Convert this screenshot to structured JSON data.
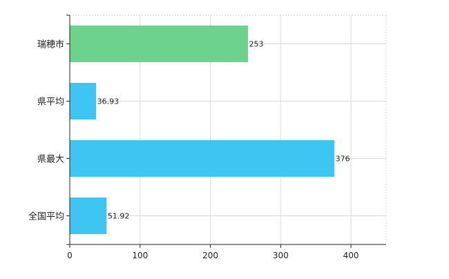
{
  "chart_data": {
    "type": "bar",
    "orientation": "horizontal",
    "categories": [
      "瑞穂市",
      "県平均",
      "県最大",
      "全国平均"
    ],
    "values": [
      253,
      36.93,
      376,
      51.92
    ],
    "value_labels": [
      "253",
      "36.93",
      "376",
      "51.92"
    ],
    "bar_colors": [
      "#6dd28b",
      "#3ec5f2",
      "#3ec5f2",
      "#3ec5f2"
    ],
    "x_ticks": [
      "0",
      "100",
      "200",
      "300",
      "400"
    ],
    "xlim": [
      0,
      450
    ],
    "grid": true
  }
}
